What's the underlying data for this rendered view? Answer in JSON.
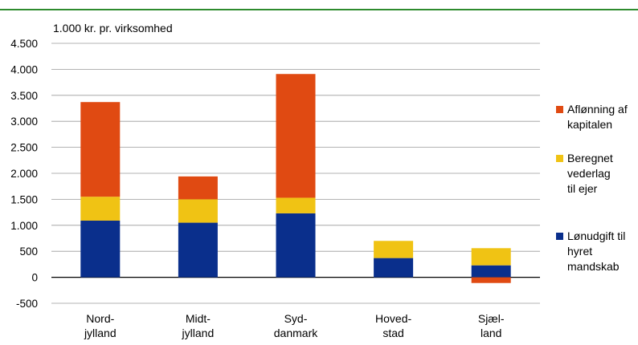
{
  "chart_data": {
    "type": "bar",
    "stacked": true,
    "unit_label": "1.000 kr. pr. virksomhed",
    "categories": [
      [
        "Nord-",
        "jylland"
      ],
      [
        "Midt-",
        "jylland"
      ],
      [
        "Syd-",
        "danmark"
      ],
      [
        "Hoved-",
        "stad"
      ],
      [
        "Sjæl-",
        "land"
      ]
    ],
    "series": [
      {
        "name": "Lønudgift til hyret mandskab",
        "legend_lines": [
          "Lønudgift til",
          "hyret",
          "mandskab"
        ],
        "color": "#0a2f8c",
        "values": [
          1090,
          1050,
          1230,
          370,
          230
        ]
      },
      {
        "name": "Beregnet vederlag til ejer",
        "legend_lines": [
          "Beregnet",
          "vederlag",
          "til ejer"
        ],
        "color": "#f0c314",
        "values": [
          460,
          450,
          300,
          330,
          330
        ]
      },
      {
        "name": "Aflønning af kapitalen",
        "legend_lines": [
          "Aflønning af",
          "kapitalen"
        ],
        "color": "#e04a12",
        "values": [
          1820,
          440,
          2380,
          0,
          -110
        ]
      }
    ],
    "ylim": [
      -500,
      4500
    ],
    "yticks": [
      -500,
      0,
      500,
      1000,
      1500,
      2000,
      2500,
      3000,
      3500,
      4000,
      4500
    ],
    "ytick_labels": [
      "-500",
      "0",
      "500",
      "1.000",
      "1.500",
      "2.000",
      "2.500",
      "3.000",
      "3.500",
      "4.000",
      "4.500"
    ],
    "grid": true,
    "legend_position": "right"
  }
}
